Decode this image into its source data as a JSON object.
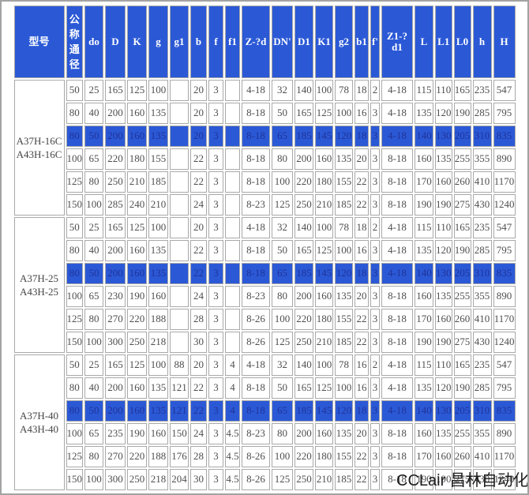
{
  "watermark": "CCLair 昌林自动化",
  "colors": {
    "header_blue": "#2b59d6",
    "highlight_blue": "#2b59d6",
    "highlight_text": "#203399",
    "cell_border": "#a9a9a9",
    "cell_text": "#4f4f4f"
  },
  "table": {
    "columns": [
      "型号",
      "公称通径",
      "do",
      "D",
      "K",
      "g",
      "g1",
      "b",
      "f",
      "f1",
      "Z-?d",
      "DN'",
      "D1",
      "K1",
      "g2",
      "b1",
      "f'",
      "Z1-?d1",
      "L",
      "L1",
      "L0",
      "h",
      "H"
    ],
    "groups": [
      {
        "model": [
          "A37H-16C",
          "A43H-16C"
        ],
        "highlighted_row": 2,
        "rows": [
          [
            "50",
            "25",
            "165",
            "125",
            "100",
            "",
            "20",
            "3",
            "",
            "4-18",
            "32",
            "140",
            "100",
            "78",
            "18",
            "2",
            "4-18",
            "115",
            "110",
            "165",
            "235",
            "547"
          ],
          [
            "80",
            "40",
            "200",
            "160",
            "135",
            "",
            "20",
            "3",
            "",
            "8-18",
            "50",
            "165",
            "125",
            "100",
            "16",
            "3",
            "4-18",
            "135",
            "120",
            "190",
            "285",
            "795"
          ],
          [
            "80",
            "50",
            "200",
            "160",
            "135",
            "",
            "20",
            "3",
            "",
            "8-18",
            "65",
            "185",
            "145",
            "120",
            "18",
            "3",
            "4-18",
            "140",
            "130",
            "205",
            "310",
            "835"
          ],
          [
            "100",
            "65",
            "220",
            "180",
            "155",
            "",
            "22",
            "3",
            "",
            "8-18",
            "80",
            "200",
            "160",
            "135",
            "20",
            "3",
            "8-18",
            "160",
            "135",
            "255",
            "355",
            "890"
          ],
          [
            "125",
            "80",
            "250",
            "210",
            "185",
            "",
            "22",
            "3",
            "",
            "8-18",
            "100",
            "220",
            "180",
            "155",
            "22",
            "3",
            "8-18",
            "170",
            "160",
            "260",
            "410",
            "1170"
          ],
          [
            "150",
            "100",
            "285",
            "240",
            "210",
            "",
            "24",
            "3",
            "",
            "8-23",
            "125",
            "250",
            "210",
            "185",
            "22",
            "3",
            "8-18",
            "190",
            "190",
            "275",
            "430",
            "1240"
          ]
        ]
      },
      {
        "model": [
          "A37H-25",
          "A43H-25"
        ],
        "highlighted_row": 2,
        "rows": [
          [
            "50",
            "25",
            "165",
            "125",
            "100",
            "",
            "20",
            "3",
            "",
            "4-18",
            "32",
            "140",
            "100",
            "78",
            "18",
            "2",
            "4-18",
            "115",
            "110",
            "165",
            "235",
            "547"
          ],
          [
            "80",
            "40",
            "200",
            "160",
            "135",
            "",
            "22",
            "3",
            "",
            "8-18",
            "50",
            "165",
            "125",
            "100",
            "16",
            "3",
            "4-18",
            "135",
            "120",
            "190",
            "285",
            "795"
          ],
          [
            "80",
            "50",
            "200",
            "160",
            "135",
            "",
            "22",
            "3",
            "",
            "8-18",
            "65",
            "185",
            "145",
            "120",
            "18",
            "3",
            "4-18",
            "140",
            "130",
            "205",
            "310",
            "835"
          ],
          [
            "100",
            "65",
            "230",
            "190",
            "160",
            "",
            "24",
            "3",
            "",
            "8-23",
            "80",
            "200",
            "160",
            "135",
            "20",
            "3",
            "8-18",
            "160",
            "135",
            "255",
            "355",
            "890"
          ],
          [
            "125",
            "80",
            "270",
            "220",
            "188",
            "",
            "28",
            "3",
            "",
            "8-26",
            "100",
            "220",
            "180",
            "155",
            "22",
            "3",
            "8-18",
            "170",
            "160",
            "260",
            "410",
            "1170"
          ],
          [
            "150",
            "100",
            "300",
            "250",
            "218",
            "",
            "30",
            "3",
            "",
            "8-26",
            "125",
            "250",
            "210",
            "185",
            "22",
            "3",
            "8-18",
            "190",
            "190",
            "275",
            "430",
            "1240"
          ]
        ]
      },
      {
        "model": [
          "A37H-40",
          "A43H-40"
        ],
        "highlighted_row": 2,
        "rows": [
          [
            "50",
            "25",
            "165",
            "125",
            "100",
            "88",
            "20",
            "3",
            "4",
            "4-18",
            "32",
            "140",
            "100",
            "78",
            "16",
            "2",
            "4-18",
            "115",
            "110",
            "165",
            "235",
            "547"
          ],
          [
            "80",
            "40",
            "200",
            "160",
            "135",
            "121",
            "22",
            "3",
            "4",
            "8-18",
            "50",
            "165",
            "125",
            "100",
            "16",
            "3",
            "4-18",
            "135",
            "120",
            "190",
            "285",
            "795"
          ],
          [
            "80",
            "50",
            "200",
            "160",
            "135",
            "121",
            "22",
            "3",
            "4",
            "8-18",
            "65",
            "185",
            "145",
            "120",
            "18",
            "3",
            "4-18",
            "140",
            "130",
            "205",
            "310",
            "835"
          ],
          [
            "100",
            "65",
            "235",
            "190",
            "160",
            "150",
            "24",
            "3",
            "4.5",
            "8-23",
            "80",
            "200",
            "160",
            "135",
            "20",
            "3",
            "8-18",
            "160",
            "135",
            "255",
            "355",
            "890"
          ],
          [
            "125",
            "80",
            "270",
            "220",
            "188",
            "176",
            "28",
            "3",
            "4.5",
            "8-26",
            "100",
            "220",
            "180",
            "155",
            "22",
            "3",
            "8-18",
            "170",
            "160",
            "260",
            "410",
            "1170"
          ],
          [
            "150",
            "100",
            "300",
            "250",
            "218",
            "204",
            "30",
            "3",
            "4.5",
            "8-26",
            "125",
            "250",
            "210",
            "185",
            "22",
            "3",
            "8-18",
            "190",
            "190",
            "275",
            "430",
            "1240"
          ]
        ]
      }
    ]
  }
}
